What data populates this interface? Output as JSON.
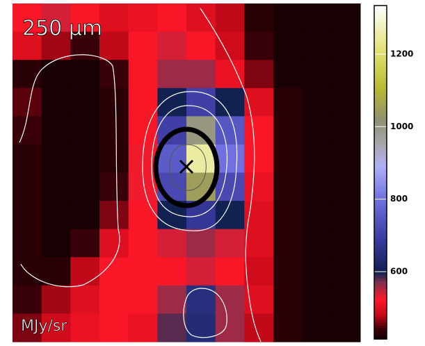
{
  "chart_data": {
    "type": "heatmap",
    "title": "250 μm",
    "unit_label": "MJy/sr",
    "zlim": [
      414,
      1334
    ],
    "zticks": [
      600,
      800,
      1000,
      1200
    ],
    "z": [
      [
        520,
        540,
        520,
        500,
        510,
        520,
        500,
        480,
        430,
        420,
        420,
        420
      ],
      [
        500,
        470,
        440,
        480,
        520,
        540,
        520,
        490,
        440,
        420,
        420,
        420
      ],
      [
        430,
        420,
        420,
        440,
        520,
        560,
        560,
        510,
        460,
        420,
        420,
        420
      ],
      [
        450,
        420,
        420,
        430,
        520,
        600,
        700,
        600,
        500,
        430,
        420,
        420
      ],
      [
        440,
        420,
        420,
        430,
        520,
        700,
        1000,
        750,
        520,
        430,
        420,
        420
      ],
      [
        430,
        420,
        420,
        430,
        530,
        760,
        1250,
        800,
        520,
        430,
        420,
        420
      ],
      [
        430,
        420,
        420,
        440,
        530,
        720,
        1050,
        720,
        510,
        430,
        420,
        420
      ],
      [
        430,
        420,
        420,
        460,
        520,
        600,
        680,
        600,
        500,
        430,
        420,
        420
      ],
      [
        430,
        420,
        440,
        500,
        520,
        540,
        560,
        540,
        500,
        430,
        420,
        420
      ],
      [
        430,
        430,
        480,
        520,
        520,
        520,
        540,
        520,
        490,
        430,
        420,
        420
      ],
      [
        440,
        470,
        500,
        520,
        520,
        560,
        650,
        560,
        500,
        430,
        420,
        420
      ],
      [
        460,
        490,
        510,
        520,
        510,
        580,
        640,
        560,
        480,
        430,
        420,
        420
      ]
    ]
  }
}
